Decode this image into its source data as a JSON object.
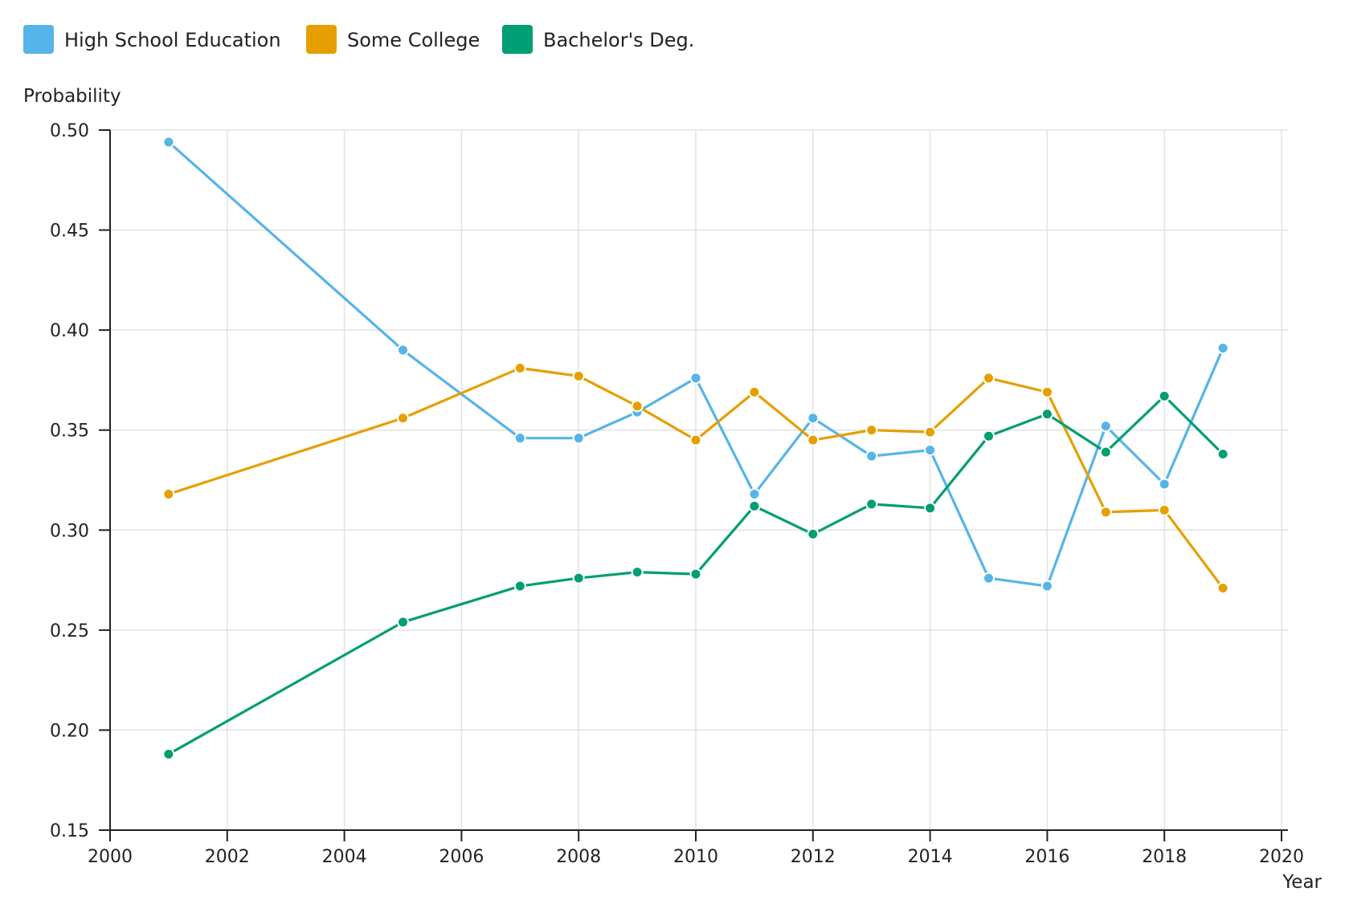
{
  "chart_data": {
    "type": "line",
    "title": "",
    "xlabel": "Year",
    "ylabel": "Probability",
    "xlim": [
      2000,
      2020
    ],
    "ylim": [
      0.15,
      0.5
    ],
    "xticks": [
      2000,
      2002,
      2004,
      2006,
      2008,
      2010,
      2012,
      2014,
      2016,
      2018,
      2020
    ],
    "xtick_labels": [
      "2000",
      "2002",
      "2004",
      "2006",
      "2008",
      "2010",
      "2012",
      "2014",
      "2016",
      "2018",
      "2020"
    ],
    "yticks": [
      0.15,
      0.2,
      0.25,
      0.3,
      0.35,
      0.4,
      0.45,
      0.5
    ],
    "ytick_labels": [
      "0.15",
      "0.20",
      "0.25",
      "0.30",
      "0.35",
      "0.40",
      "0.45",
      "0.50"
    ],
    "grid": true,
    "legend_position": "top-left",
    "x": [
      2001,
      2005,
      2007,
      2008,
      2009,
      2010,
      2011,
      2012,
      2013,
      2014,
      2015,
      2016,
      2017,
      2018,
      2019
    ],
    "series": [
      {
        "name": "High School Education",
        "color": "#56B4E9",
        "values": [
          0.494,
          0.39,
          0.346,
          0.346,
          0.359,
          0.376,
          0.318,
          0.356,
          0.337,
          0.34,
          0.276,
          0.272,
          0.352,
          0.323,
          0.391
        ]
      },
      {
        "name": "Some College",
        "color": "#E69F00",
        "values": [
          0.318,
          0.356,
          0.381,
          0.377,
          0.362,
          0.345,
          0.369,
          0.345,
          0.35,
          0.349,
          0.376,
          0.369,
          0.309,
          0.31,
          0.271
        ]
      },
      {
        "name": "Bachelor's Deg.",
        "color": "#009E73",
        "values": [
          0.188,
          0.254,
          0.272,
          0.276,
          0.279,
          0.278,
          0.312,
          0.298,
          0.313,
          0.311,
          0.347,
          0.358,
          0.339,
          0.367,
          0.338
        ]
      }
    ]
  }
}
